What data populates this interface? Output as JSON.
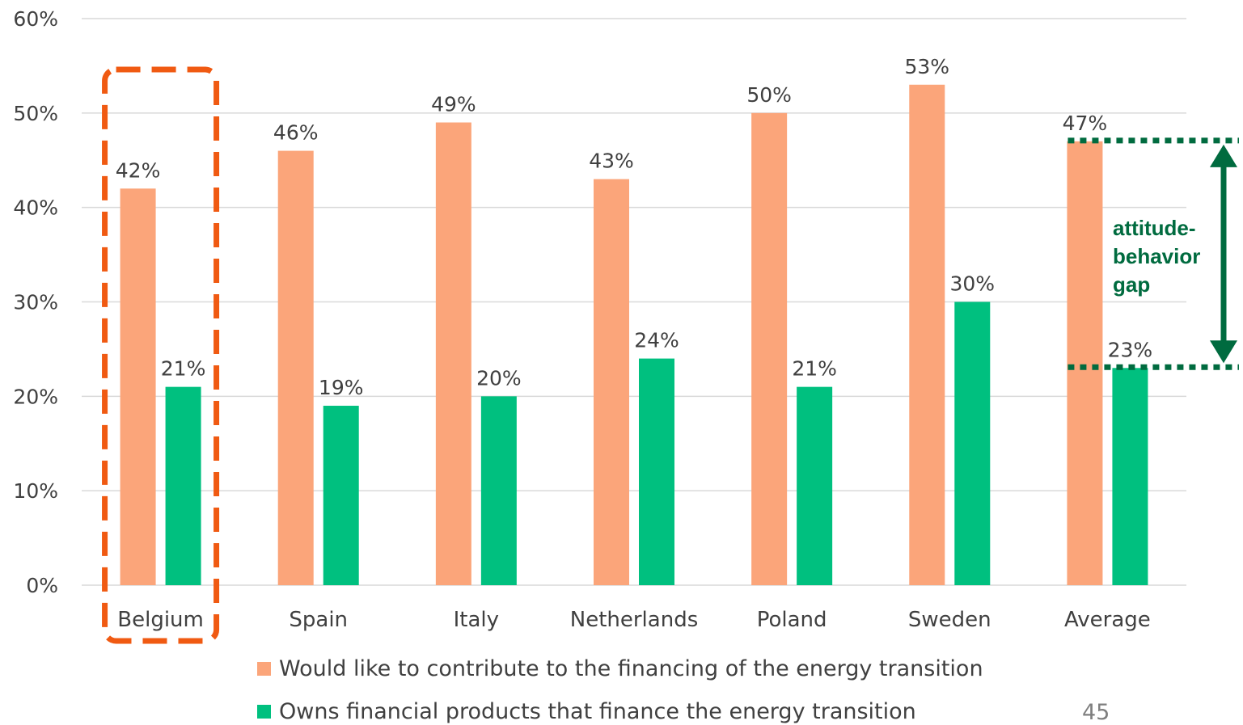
{
  "chart_data": {
    "type": "bar",
    "categories": [
      "Belgium",
      "Spain",
      "Italy",
      "Netherlands",
      "Poland",
      "Sweden",
      "Average"
    ],
    "series": [
      {
        "name": "Would like to contribute to the financing of the energy transition",
        "values": [
          42,
          46,
          49,
          43,
          50,
          53,
          47
        ],
        "labels": [
          "42%",
          "46%",
          "49%",
          "43%",
          "50%",
          "53%",
          "47%"
        ],
        "color": "#fba57a"
      },
      {
        "name": "Owns financial products that finance the energy transition",
        "values": [
          21,
          19,
          20,
          24,
          21,
          30,
          23
        ],
        "labels": [
          "21%",
          "19%",
          "20%",
          "24%",
          "21%",
          "30%",
          "23%"
        ],
        "color": "#00c07f"
      }
    ],
    "ylim": [
      0,
      60
    ],
    "yticks": [
      "0%",
      "10%",
      "20%",
      "30%",
      "40%",
      "50%",
      "60%"
    ],
    "grid": true,
    "legend_position": "bottom",
    "highlight": {
      "category": "Belgium",
      "color": "#f05a12"
    },
    "annotation": {
      "lines": [
        "attitude-",
        "behavior",
        "gap"
      ],
      "color": "#006b3f",
      "from_value": 47,
      "to_value": 23
    }
  },
  "page_number": "45"
}
